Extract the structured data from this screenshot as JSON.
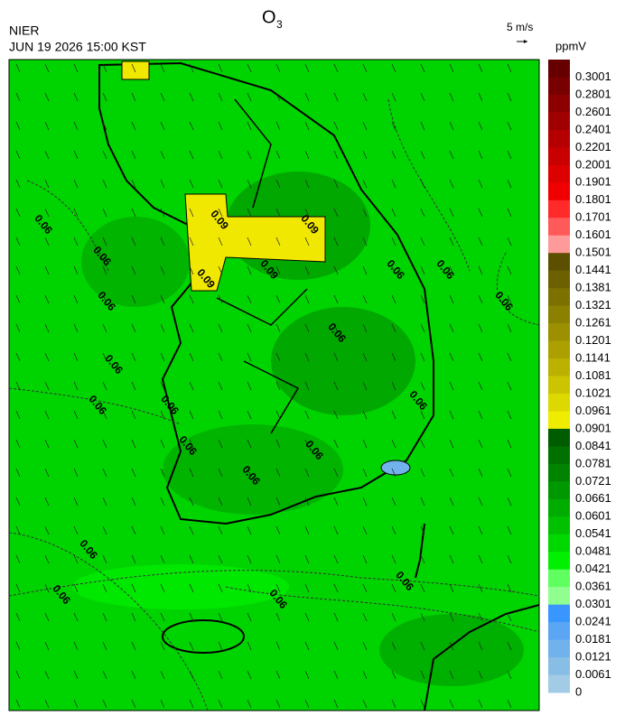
{
  "header": {
    "title": "O",
    "title_subscript": "3",
    "agency": "NIER",
    "datetime": "JUN 19 2026 15:00 KST",
    "wind_scale": "5 m/s"
  },
  "colorbar": {
    "unit": "ppmV",
    "labels": [
      "0.3001",
      "0.2801",
      "0.2601",
      "0.2401",
      "0.2201",
      "0.2001",
      "0.1901",
      "0.1801",
      "0.1701",
      "0.1601",
      "0.1501",
      "0.1441",
      "0.1381",
      "0.1321",
      "0.1261",
      "0.1201",
      "0.1141",
      "0.1081",
      "0.1021",
      "0.0961",
      "0.0901",
      "0.0841",
      "0.0781",
      "0.0721",
      "0.0661",
      "0.0601",
      "0.0541",
      "0.0481",
      "0.0421",
      "0.0361",
      "0.0301",
      "0.0241",
      "0.0181",
      "0.0121",
      "0.0061",
      "0"
    ],
    "colors": [
      "#660000",
      "#780000",
      "#8c0000",
      "#a00000",
      "#b40000",
      "#c80000",
      "#dc0000",
      "#f00000",
      "#ff2a2a",
      "#ff5a5a",
      "#ff9a9a",
      "#5c5000",
      "#6c6000",
      "#7c7000",
      "#8c8000",
      "#9c9000",
      "#aca000",
      "#bcb000",
      "#ccc400",
      "#dcd800",
      "#f0ec00",
      "#005c00",
      "#007000",
      "#008400",
      "#009800",
      "#00ac00",
      "#00c000",
      "#00d800",
      "#00f000",
      "#60ff60",
      "#90ff90",
      "#3a96ff",
      "#5aa6f4",
      "#72b2ec",
      "#88bee6",
      "#a2cce6"
    ]
  },
  "contour_labels": [
    "0.06",
    "0.06",
    "0.06",
    "0.06",
    "0.06",
    "0.06",
    "0.06",
    "0.06",
    "0.06",
    "0.06",
    "0.06",
    "0.06",
    "0.06",
    "0.06",
    "0.06",
    "0.06",
    "0.06",
    "0.06",
    "0.09",
    "0.09",
    "0.09",
    "0.09"
  ]
}
